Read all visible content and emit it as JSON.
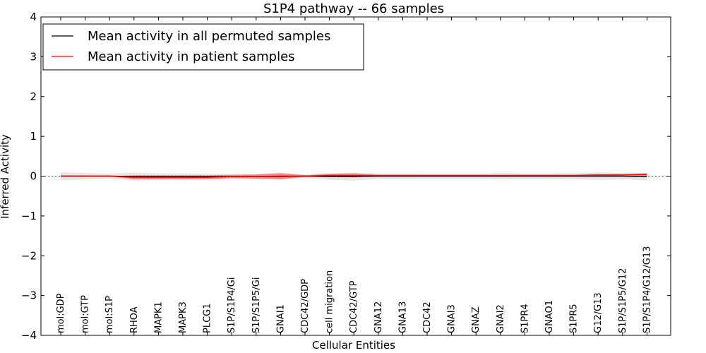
{
  "chart_data": {
    "type": "line",
    "title": "S1P4 pathway -- 66 samples",
    "xlabel": "Cellular Entities",
    "ylabel": "Inferred Activity",
    "ylim": [
      -4,
      4
    ],
    "yticks": [
      -4,
      -3,
      -2,
      -1,
      0,
      1,
      2,
      3,
      4
    ],
    "ytick_labels": [
      "−4",
      "−3",
      "−2",
      "−1",
      "0",
      "1",
      "2",
      "3",
      "4"
    ],
    "grid": false,
    "legend_position": "top-left",
    "categories": [
      "mol:GDP",
      "mol:GTP",
      "mol:S1P",
      "RHOA",
      "MAPK1",
      "MAPK3",
      "PLCG1",
      "S1P/S1P4/Gi",
      "S1P/S1P5/Gi",
      "GNAI1",
      "CDC42/GDP",
      "cell migration",
      "CDC42/GTP",
      "GNA12",
      "GNA13",
      "CDC42",
      "GNAI3",
      "GNAZ",
      "GNAI2",
      "S1PR4",
      "GNAO1",
      "S1PR5",
      "G12/G13",
      "S1P/S1P5/G12",
      "S1P/S1P4/G12/G13"
    ],
    "series": [
      {
        "name": "Mean activity in all permuted samples",
        "color": "#000000",
        "band_color": "#808080",
        "values": [
          0.0,
          0.0,
          0.0,
          -0.01,
          -0.01,
          -0.01,
          -0.01,
          -0.01,
          -0.01,
          -0.01,
          0.0,
          -0.01,
          -0.01,
          0.0,
          0.0,
          0.0,
          0.0,
          0.0,
          0.0,
          0.0,
          0.0,
          0.0,
          0.0,
          0.0,
          -0.01
        ],
        "spread": [
          0.1,
          0.08,
          0.06,
          0.1,
          0.08,
          0.08,
          0.07,
          0.07,
          0.07,
          0.07,
          0.05,
          0.08,
          0.1,
          0.07,
          0.07,
          0.06,
          0.06,
          0.06,
          0.08,
          0.07,
          0.07,
          0.08,
          0.09,
          0.08,
          0.09
        ]
      },
      {
        "name": "Mean activity in patient samples",
        "color": "#ff0000",
        "band_color": "#ff0000",
        "values": [
          0.0,
          0.0,
          0.0,
          -0.03,
          -0.03,
          -0.03,
          -0.03,
          -0.01,
          -0.01,
          0.0,
          0.0,
          0.02,
          0.02,
          0.02,
          0.02,
          0.02,
          0.02,
          0.02,
          0.02,
          0.02,
          0.02,
          0.02,
          0.03,
          0.03,
          0.04
        ],
        "spread": [
          0.0,
          0.0,
          0.0,
          0.05,
          0.05,
          0.05,
          0.05,
          0.04,
          0.05,
          0.08,
          0.02,
          0.04,
          0.05,
          0.01,
          0.01,
          0.01,
          0.01,
          0.01,
          0.01,
          0.01,
          0.01,
          0.01,
          0.02,
          0.02,
          0.03
        ]
      }
    ]
  }
}
